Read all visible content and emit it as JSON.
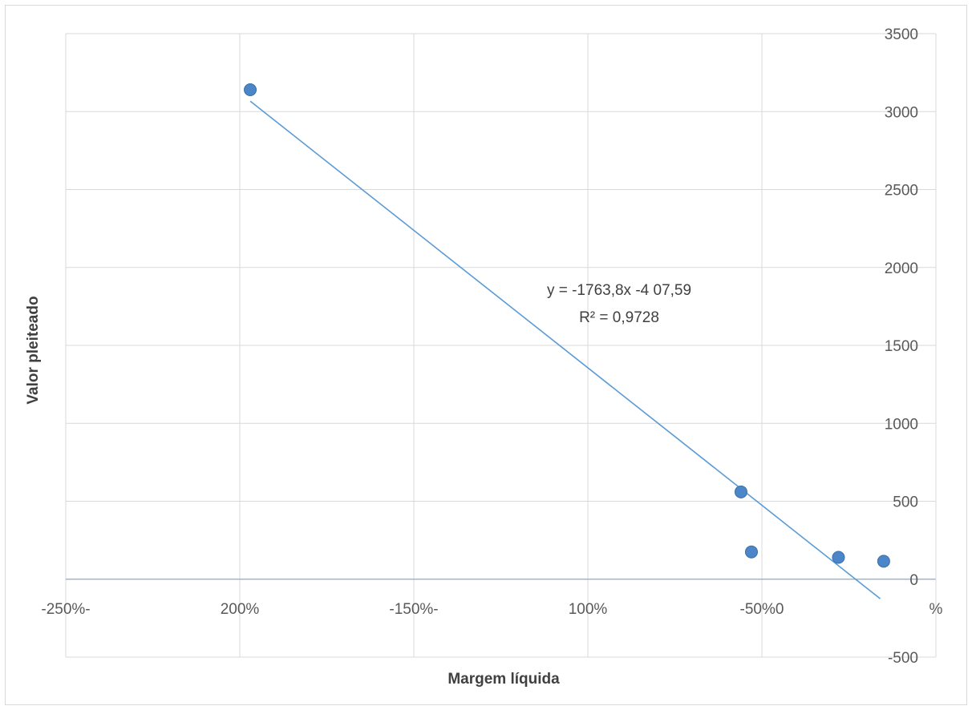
{
  "chart_data": {
    "type": "scatter",
    "xlabel": "Margem líquida",
    "ylabel": "Valor pleiteado",
    "xlim": [
      -2.5,
      0
    ],
    "ylim": [
      -500,
      3500
    ],
    "x_ticks": [
      {
        "value": -2.5,
        "label": "-250%-"
      },
      {
        "value": -2.0,
        "label": "200%"
      },
      {
        "value": -1.5,
        "label": "-150%-"
      },
      {
        "value": -1.0,
        "label": "100%"
      },
      {
        "value": -0.5,
        "label": "-50%0"
      },
      {
        "value": 0.0,
        "label": "%"
      }
    ],
    "y_ticks": [
      {
        "value": 3500,
        "label": "3500"
      },
      {
        "value": 3000,
        "label": "3000"
      },
      {
        "value": 2500,
        "label": "2500"
      },
      {
        "value": 2000,
        "label": "2000"
      },
      {
        "value": 1500,
        "label": "1500"
      },
      {
        "value": 1000,
        "label": "1000"
      },
      {
        "value": 500,
        "label": "500"
      },
      {
        "value": 0,
        "label": "0"
      },
      {
        "value": -500,
        "label": "-500"
      }
    ],
    "grid": true,
    "legend": "none",
    "series": [
      {
        "x": [
          -1.97,
          -0.56,
          -0.53,
          -0.28,
          -0.15
        ],
        "y": [
          3140,
          560,
          175,
          140,
          115
        ],
        "color": "#4a86c8"
      }
    ],
    "trendline": {
      "slope": -1763.8,
      "intercept": -407.59,
      "x_range": [
        -1.97,
        -0.16
      ],
      "color": "#5b9bd5",
      "equation": "y = -1763,8x -4 07,59",
      "r_squared": "R² = 0,9728"
    }
  }
}
